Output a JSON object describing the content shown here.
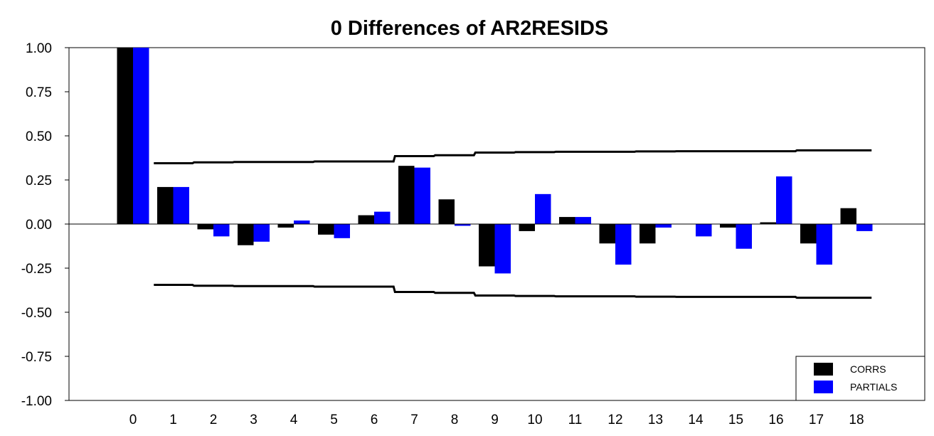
{
  "chart_data": {
    "type": "bar",
    "title": "0 Differences of AR2RESIDS",
    "categories": [
      "0",
      "1",
      "2",
      "3",
      "4",
      "5",
      "6",
      "7",
      "8",
      "9",
      "10",
      "11",
      "12",
      "13",
      "14",
      "15",
      "16",
      "17",
      "18"
    ],
    "yticks": [
      "1.00",
      "0.75",
      "0.50",
      "0.25",
      "0.00",
      "-0.25",
      "-0.50",
      "-0.75",
      "-1.00"
    ],
    "ytick_values": [
      1.0,
      0.75,
      0.5,
      0.25,
      0.0,
      -0.25,
      -0.5,
      -0.75,
      -1.0
    ],
    "ylim": [
      -1.0,
      1.0
    ],
    "grid": false,
    "legend_position": "bottom-right",
    "series": [
      {
        "name": "CORRS",
        "color": "#000000",
        "values": [
          1.0,
          0.21,
          -0.03,
          -0.12,
          -0.02,
          -0.06,
          0.05,
          0.33,
          0.14,
          -0.24,
          -0.04,
          0.04,
          -0.11,
          -0.11,
          0.0,
          -0.02,
          0.01,
          -0.11,
          0.09
        ]
      },
      {
        "name": "PARTIALS",
        "color": "#0000ff",
        "values": [
          1.0,
          0.21,
          -0.07,
          -0.1,
          0.02,
          -0.08,
          0.07,
          0.32,
          -0.01,
          -0.28,
          0.17,
          0.04,
          -0.23,
          -0.02,
          -0.07,
          -0.14,
          0.27,
          -0.23,
          -0.04
        ]
      }
    ],
    "confidence_bounds": {
      "upper": [
        0.33,
        0.345,
        0.35,
        0.352,
        0.352,
        0.355,
        0.355,
        0.385,
        0.39,
        0.405,
        0.408,
        0.41,
        0.41,
        0.412,
        0.413,
        0.413,
        0.413,
        0.418,
        0.418
      ],
      "lower": [
        -0.33,
        -0.345,
        -0.35,
        -0.352,
        -0.352,
        -0.355,
        -0.355,
        -0.385,
        -0.39,
        -0.405,
        -0.408,
        -0.41,
        -0.41,
        -0.412,
        -0.413,
        -0.413,
        -0.413,
        -0.418,
        -0.418
      ],
      "color": "#000000"
    }
  }
}
